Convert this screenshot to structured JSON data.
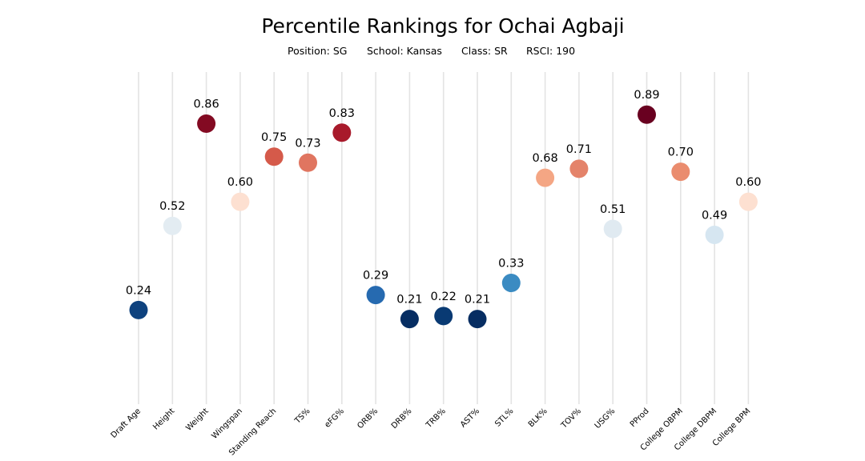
{
  "chart_data": {
    "type": "scatter",
    "title": "Percentile Rankings for Ochai Agbaji",
    "subtitle": {
      "position": "Position: SG",
      "school": "School: Kansas",
      "class": "Class: SR",
      "rsci": "RSCI: 190"
    },
    "ylim": [
      0,
      1
    ],
    "grid": "vertical lines per category",
    "colormap": "diverging blue-white-red",
    "categories": [
      "Draft Age",
      "Height",
      "Weight",
      "Wingspan",
      "Standing Reach",
      "TS%",
      "eFG%",
      "ORB%",
      "DRB%",
      "TRB%",
      "AST%",
      "STL%",
      "BLK%",
      "TOV%",
      "USG%",
      "PProd",
      "College OBPM",
      "College DBPM",
      "College BPM"
    ],
    "values": [
      0.24,
      0.52,
      0.86,
      0.6,
      0.75,
      0.73,
      0.83,
      0.29,
      0.21,
      0.22,
      0.21,
      0.33,
      0.68,
      0.71,
      0.51,
      0.89,
      0.7,
      0.49,
      0.6
    ],
    "labels": [
      "0.24",
      "0.52",
      "0.86",
      "0.60",
      "0.75",
      "0.73",
      "0.83",
      "0.29",
      "0.21",
      "0.22",
      "0.21",
      "0.33",
      "0.68",
      "0.71",
      "0.51",
      "0.89",
      "0.70",
      "0.49",
      "0.60"
    ],
    "colors": [
      "#0e427e",
      "#e3ecf2",
      "#830a22",
      "#fde0d1",
      "#d55a4a",
      "#e07560",
      "#a81a2b",
      "#266ab0",
      "#062d62",
      "#093a73",
      "#062d62",
      "#3b8bc2",
      "#f4a684",
      "#e4836a",
      "#e0eaf1",
      "#690020",
      "#ea8c6e",
      "#d6e6f1",
      "#fde0d1"
    ]
  }
}
